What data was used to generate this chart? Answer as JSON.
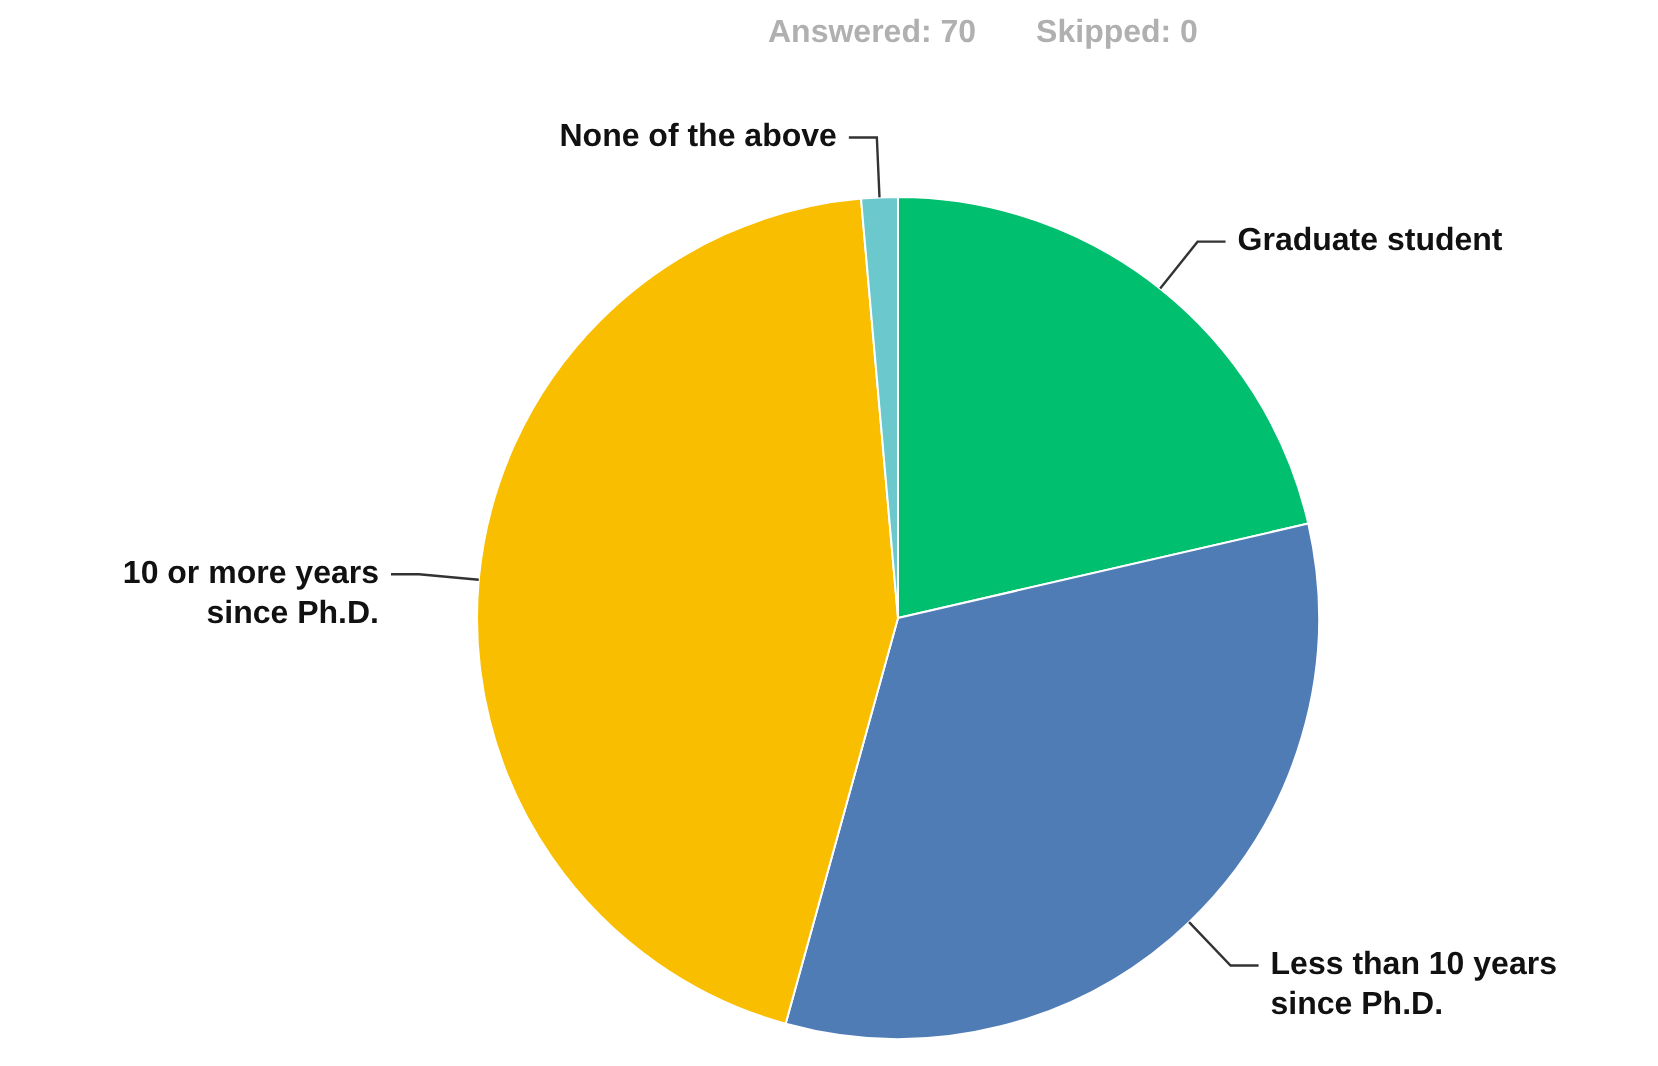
{
  "chart_data": {
    "type": "pie",
    "categories": [
      "Graduate student",
      "Less than 10 years since Ph.D.",
      "10 or more years since Ph.D.",
      "None of the above"
    ],
    "values": [
      21.4,
      32.9,
      44.3,
      1.4
    ],
    "colors": [
      "#00bf6f",
      "#507cb6",
      "#f9be00",
      "#6bc8cd"
    ],
    "legend": false,
    "annotations": [
      "Answered: 70",
      "Skipped: 0"
    ]
  }
}
